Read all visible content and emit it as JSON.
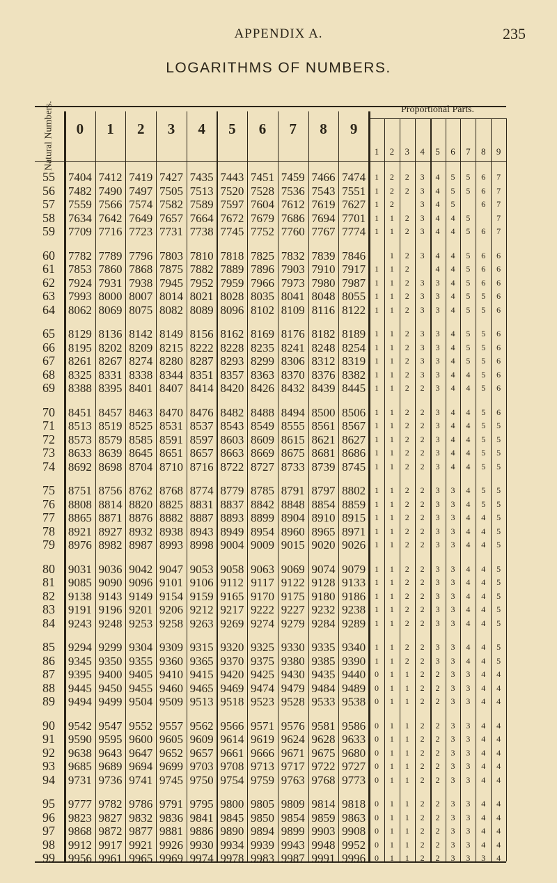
{
  "page": {
    "running_head": "APPENDIX A.",
    "page_number": "235",
    "title": "LOGARITHMS OF NUMBERS."
  },
  "table": {
    "natural_header": "Natural Numbers.",
    "column_headers": [
      "0",
      "1",
      "2",
      "3",
      "4",
      "5",
      "6",
      "7",
      "8",
      "9"
    ],
    "pp_title": "Proportional Parts.",
    "pp_headers": [
      "1",
      "2",
      "3",
      "4",
      "5",
      "6",
      "7",
      "8",
      "9"
    ],
    "rows": [
      {
        "n": "55",
        "logs": [
          "7404",
          "7412",
          "7419",
          "7427",
          "7435",
          "7443",
          "7451",
          "7459",
          "7466",
          "7474"
        ],
        "pp": [
          "1",
          "2",
          "2",
          "3",
          "4",
          "5",
          "5",
          "6",
          "7"
        ]
      },
      {
        "n": "56",
        "logs": [
          "7482",
          "7490",
          "7497",
          "7505",
          "7513",
          "7520",
          "7528",
          "7536",
          "7543",
          "7551"
        ],
        "pp": [
          "1",
          "2",
          "2",
          "3",
          "4",
          "5",
          "5",
          "6",
          "7"
        ]
      },
      {
        "n": "57",
        "logs": [
          "7559",
          "7566",
          "7574",
          "7582",
          "7589",
          "7597",
          "7604",
          "7612",
          "7619",
          "7627"
        ],
        "pp": [
          "1",
          "2",
          "",
          "3",
          "4",
          "5",
          "",
          "6",
          "7"
        ]
      },
      {
        "n": "58",
        "logs": [
          "7634",
          "7642",
          "7649",
          "7657",
          "7664",
          "7672",
          "7679",
          "7686",
          "7694",
          "7701"
        ],
        "pp": [
          "1",
          "1",
          "2",
          "3",
          "4",
          "4",
          "5",
          "",
          "7"
        ]
      },
      {
        "n": "59",
        "logs": [
          "7709",
          "7716",
          "7723",
          "7731",
          "7738",
          "7745",
          "7752",
          "7760",
          "7767",
          "7774"
        ],
        "pp": [
          "1",
          "1",
          "2",
          "3",
          "4",
          "4",
          "5",
          "6",
          "7"
        ]
      },
      {
        "n": "60",
        "logs": [
          "7782",
          "7789",
          "7796",
          "7803",
          "7810",
          "7818",
          "7825",
          "7832",
          "7839",
          "7846"
        ],
        "pp": [
          "",
          "1",
          "2",
          "3",
          "4",
          "4",
          "5",
          "6",
          "6"
        ]
      },
      {
        "n": "61",
        "logs": [
          "7853",
          "7860",
          "7868",
          "7875",
          "7882",
          "7889",
          "7896",
          "7903",
          "7910",
          "7917"
        ],
        "pp": [
          "1",
          "1",
          "2",
          "",
          "4",
          "4",
          "5",
          "6",
          "6"
        ]
      },
      {
        "n": "62",
        "logs": [
          "7924",
          "7931",
          "7938",
          "7945",
          "7952",
          "7959",
          "7966",
          "7973",
          "7980",
          "7987"
        ],
        "pp": [
          "1",
          "1",
          "2",
          "3",
          "3",
          "4",
          "5",
          "6",
          "6"
        ]
      },
      {
        "n": "63",
        "logs": [
          "7993",
          "8000",
          "8007",
          "8014",
          "8021",
          "8028",
          "8035",
          "8041",
          "8048",
          "8055"
        ],
        "pp": [
          "1",
          "1",
          "2",
          "3",
          "3",
          "4",
          "5",
          "5",
          "6"
        ]
      },
      {
        "n": "64",
        "logs": [
          "8062",
          "8069",
          "8075",
          "8082",
          "8089",
          "8096",
          "8102",
          "8109",
          "8116",
          "8122"
        ],
        "pp": [
          "1",
          "1",
          "2",
          "3",
          "3",
          "4",
          "5",
          "5",
          "6"
        ]
      },
      {
        "n": "65",
        "logs": [
          "8129",
          "8136",
          "8142",
          "8149",
          "8156",
          "8162",
          "8169",
          "8176",
          "8182",
          "8189"
        ],
        "pp": [
          "1",
          "1",
          "2",
          "3",
          "3",
          "4",
          "5",
          "5",
          "6"
        ]
      },
      {
        "n": "66",
        "logs": [
          "8195",
          "8202",
          "8209",
          "8215",
          "8222",
          "8228",
          "8235",
          "8241",
          "8248",
          "8254"
        ],
        "pp": [
          "1",
          "1",
          "2",
          "3",
          "3",
          "4",
          "5",
          "5",
          "6"
        ]
      },
      {
        "n": "67",
        "logs": [
          "8261",
          "8267",
          "8274",
          "8280",
          "8287",
          "8293",
          "8299",
          "8306",
          "8312",
          "8319"
        ],
        "pp": [
          "1",
          "1",
          "2",
          "3",
          "3",
          "4",
          "5",
          "5",
          "6"
        ]
      },
      {
        "n": "68",
        "logs": [
          "8325",
          "8331",
          "8338",
          "8344",
          "8351",
          "8357",
          "8363",
          "8370",
          "8376",
          "8382"
        ],
        "pp": [
          "1",
          "1",
          "2",
          "3",
          "3",
          "4",
          "4",
          "5",
          "6"
        ]
      },
      {
        "n": "69",
        "logs": [
          "8388",
          "8395",
          "8401",
          "8407",
          "8414",
          "8420",
          "8426",
          "8432",
          "8439",
          "8445"
        ],
        "pp": [
          "1",
          "1",
          "2",
          "2",
          "3",
          "4",
          "4",
          "5",
          "6"
        ]
      },
      {
        "n": "70",
        "logs": [
          "8451",
          "8457",
          "8463",
          "8470",
          "8476",
          "8482",
          "8488",
          "8494",
          "8500",
          "8506"
        ],
        "pp": [
          "1",
          "1",
          "2",
          "2",
          "3",
          "4",
          "4",
          "5",
          "6"
        ]
      },
      {
        "n": "71",
        "logs": [
          "8513",
          "8519",
          "8525",
          "8531",
          "8537",
          "8543",
          "8549",
          "8555",
          "8561",
          "8567"
        ],
        "pp": [
          "1",
          "1",
          "2",
          "2",
          "3",
          "4",
          "4",
          "5",
          "5"
        ]
      },
      {
        "n": "72",
        "logs": [
          "8573",
          "8579",
          "8585",
          "8591",
          "8597",
          "8603",
          "8609",
          "8615",
          "8621",
          "8627"
        ],
        "pp": [
          "1",
          "1",
          "2",
          "2",
          "3",
          "4",
          "4",
          "5",
          "5"
        ]
      },
      {
        "n": "73",
        "logs": [
          "8633",
          "8639",
          "8645",
          "8651",
          "8657",
          "8663",
          "8669",
          "8675",
          "8681",
          "8686"
        ],
        "pp": [
          "1",
          "1",
          "2",
          "2",
          "3",
          "4",
          "4",
          "5",
          "5"
        ]
      },
      {
        "n": "74",
        "logs": [
          "8692",
          "8698",
          "8704",
          "8710",
          "8716",
          "8722",
          "8727",
          "8733",
          "8739",
          "8745"
        ],
        "pp": [
          "1",
          "1",
          "2",
          "2",
          "3",
          "4",
          "4",
          "5",
          "5"
        ]
      },
      {
        "n": "75",
        "logs": [
          "8751",
          "8756",
          "8762",
          "8768",
          "8774",
          "8779",
          "8785",
          "8791",
          "8797",
          "8802"
        ],
        "pp": [
          "1",
          "1",
          "2",
          "2",
          "3",
          "3",
          "4",
          "5",
          "5"
        ]
      },
      {
        "n": "76",
        "logs": [
          "8808",
          "8814",
          "8820",
          "8825",
          "8831",
          "8837",
          "8842",
          "8848",
          "8854",
          "8859"
        ],
        "pp": [
          "1",
          "1",
          "2",
          "2",
          "3",
          "3",
          "4",
          "5",
          "5"
        ]
      },
      {
        "n": "77",
        "logs": [
          "8865",
          "8871",
          "8876",
          "8882",
          "8887",
          "8893",
          "8899",
          "8904",
          "8910",
          "8915"
        ],
        "pp": [
          "1",
          "1",
          "2",
          "2",
          "3",
          "3",
          "4",
          "4",
          "5"
        ]
      },
      {
        "n": "78",
        "logs": [
          "8921",
          "8927",
          "8932",
          "8938",
          "8943",
          "8949",
          "8954",
          "8960",
          "8965",
          "8971"
        ],
        "pp": [
          "1",
          "1",
          "2",
          "2",
          "3",
          "3",
          "4",
          "4",
          "5"
        ]
      },
      {
        "n": "79",
        "logs": [
          "8976",
          "8982",
          "8987",
          "8993",
          "8998",
          "9004",
          "9009",
          "9015",
          "9020",
          "9026"
        ],
        "pp": [
          "1",
          "1",
          "2",
          "2",
          "3",
          "3",
          "4",
          "4",
          "5"
        ]
      },
      {
        "n": "80",
        "logs": [
          "9031",
          "9036",
          "9042",
          "9047",
          "9053",
          "9058",
          "9063",
          "9069",
          "9074",
          "9079"
        ],
        "pp": [
          "1",
          "1",
          "2",
          "2",
          "3",
          "3",
          "4",
          "4",
          "5"
        ]
      },
      {
        "n": "81",
        "logs": [
          "9085",
          "9090",
          "9096",
          "9101",
          "9106",
          "9112",
          "9117",
          "9122",
          "9128",
          "9133"
        ],
        "pp": [
          "1",
          "1",
          "2",
          "2",
          "3",
          "3",
          "4",
          "4",
          "5"
        ]
      },
      {
        "n": "82",
        "logs": [
          "9138",
          "9143",
          "9149",
          "9154",
          "9159",
          "9165",
          "9170",
          "9175",
          "9180",
          "9186"
        ],
        "pp": [
          "1",
          "1",
          "2",
          "2",
          "3",
          "3",
          "4",
          "4",
          "5"
        ]
      },
      {
        "n": "83",
        "logs": [
          "9191",
          "9196",
          "9201",
          "9206",
          "9212",
          "9217",
          "9222",
          "9227",
          "9232",
          "9238"
        ],
        "pp": [
          "1",
          "1",
          "2",
          "2",
          "3",
          "3",
          "4",
          "4",
          "5"
        ]
      },
      {
        "n": "84",
        "logs": [
          "9243",
          "9248",
          "9253",
          "9258",
          "9263",
          "9269",
          "9274",
          "9279",
          "9284",
          "9289"
        ],
        "pp": [
          "1",
          "1",
          "2",
          "2",
          "3",
          "3",
          "4",
          "4",
          "5"
        ]
      },
      {
        "n": "85",
        "logs": [
          "9294",
          "9299",
          "9304",
          "9309",
          "9315",
          "9320",
          "9325",
          "9330",
          "9335",
          "9340"
        ],
        "pp": [
          "1",
          "1",
          "2",
          "2",
          "3",
          "3",
          "4",
          "4",
          "5"
        ]
      },
      {
        "n": "86",
        "logs": [
          "9345",
          "9350",
          "9355",
          "9360",
          "9365",
          "9370",
          "9375",
          "9380",
          "9385",
          "9390"
        ],
        "pp": [
          "1",
          "1",
          "2",
          "2",
          "3",
          "3",
          "4",
          "4",
          "5"
        ]
      },
      {
        "n": "87",
        "logs": [
          "9395",
          "9400",
          "9405",
          "9410",
          "9415",
          "9420",
          "9425",
          "9430",
          "9435",
          "9440"
        ],
        "pp": [
          "0",
          "1",
          "1",
          "2",
          "2",
          "3",
          "3",
          "4",
          "4"
        ]
      },
      {
        "n": "88",
        "logs": [
          "9445",
          "9450",
          "9455",
          "9460",
          "9465",
          "9469",
          "9474",
          "9479",
          "9484",
          "9489"
        ],
        "pp": [
          "0",
          "1",
          "1",
          "2",
          "2",
          "3",
          "3",
          "4",
          "4"
        ]
      },
      {
        "n": "89",
        "logs": [
          "9494",
          "9499",
          "9504",
          "9509",
          "9513",
          "9518",
          "9523",
          "9528",
          "9533",
          "9538"
        ],
        "pp": [
          "0",
          "1",
          "1",
          "2",
          "2",
          "3",
          "3",
          "4",
          "4"
        ]
      },
      {
        "n": "90",
        "logs": [
          "9542",
          "9547",
          "9552",
          "9557",
          "9562",
          "9566",
          "9571",
          "9576",
          "9581",
          "9586"
        ],
        "pp": [
          "0",
          "1",
          "1",
          "2",
          "2",
          "3",
          "3",
          "4",
          "4"
        ]
      },
      {
        "n": "91",
        "logs": [
          "9590",
          "9595",
          "9600",
          "9605",
          "9609",
          "9614",
          "9619",
          "9624",
          "9628",
          "9633"
        ],
        "pp": [
          "0",
          "1",
          "1",
          "2",
          "2",
          "3",
          "3",
          "4",
          "4"
        ]
      },
      {
        "n": "92",
        "logs": [
          "9638",
          "9643",
          "9647",
          "9652",
          "9657",
          "9661",
          "9666",
          "9671",
          "9675",
          "9680"
        ],
        "pp": [
          "0",
          "1",
          "1",
          "2",
          "2",
          "3",
          "3",
          "4",
          "4"
        ]
      },
      {
        "n": "93",
        "logs": [
          "9685",
          "9689",
          "9694",
          "9699",
          "9703",
          "9708",
          "9713",
          "9717",
          "9722",
          "9727"
        ],
        "pp": [
          "0",
          "1",
          "1",
          "2",
          "2",
          "3",
          "3",
          "4",
          "4"
        ]
      },
      {
        "n": "94",
        "logs": [
          "9731",
          "9736",
          "9741",
          "9745",
          "9750",
          "9754",
          "9759",
          "9763",
          "9768",
          "9773"
        ],
        "pp": [
          "0",
          "1",
          "1",
          "2",
          "2",
          "3",
          "3",
          "4",
          "4"
        ]
      },
      {
        "n": "95",
        "logs": [
          "9777",
          "9782",
          "9786",
          "9791",
          "9795",
          "9800",
          "9805",
          "9809",
          "9814",
          "9818"
        ],
        "pp": [
          "0",
          "1",
          "1",
          "2",
          "2",
          "3",
          "3",
          "4",
          "4"
        ]
      },
      {
        "n": "96",
        "logs": [
          "9823",
          "9827",
          "9832",
          "9836",
          "9841",
          "9845",
          "9850",
          "9854",
          "9859",
          "9863"
        ],
        "pp": [
          "0",
          "1",
          "1",
          "2",
          "2",
          "3",
          "3",
          "4",
          "4"
        ]
      },
      {
        "n": "97",
        "logs": [
          "9868",
          "9872",
          "9877",
          "9881",
          "9886",
          "9890",
          "9894",
          "9899",
          "9903",
          "9908"
        ],
        "pp": [
          "0",
          "1",
          "1",
          "2",
          "2",
          "3",
          "3",
          "4",
          "4"
        ]
      },
      {
        "n": "98",
        "logs": [
          "9912",
          "9917",
          "9921",
          "9926",
          "9930",
          "9934",
          "9939",
          "9943",
          "9948",
          "9952"
        ],
        "pp": [
          "0",
          "1",
          "1",
          "2",
          "2",
          "3",
          "3",
          "4",
          "4"
        ]
      },
      {
        "n": "99",
        "logs": [
          "9956",
          "9961",
          "9965",
          "9969",
          "9974",
          "9978",
          "9983",
          "9987",
          "9991",
          "9996"
        ],
        "pp": [
          "0",
          "1",
          "1",
          "2",
          "2",
          "3",
          "3",
          "3",
          "4"
        ]
      }
    ]
  }
}
